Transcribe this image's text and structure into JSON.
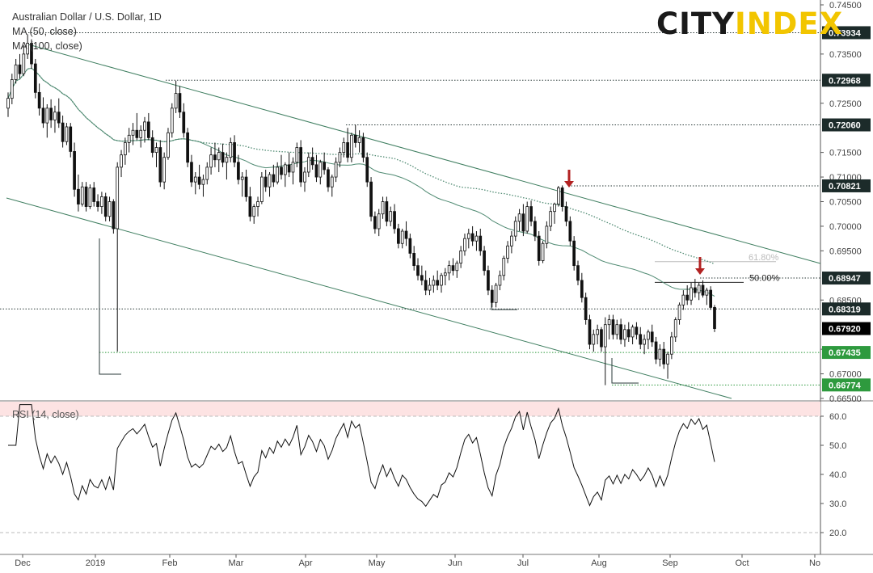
{
  "legend": {
    "title": "Australian Dollar / U.S. Dollar, 1D",
    "ma50": "MA (50, close)",
    "ma100": "MA (100, close)"
  },
  "logo": {
    "part1": "CITY",
    "part2": "INDEX"
  },
  "rsi_label": "RSI (14, close)",
  "colors": {
    "candle": "#111111",
    "ma_solid": "#4f8a72",
    "ma_dotted": "#4f8a72",
    "channel": "#3f7e60",
    "arrow": "#b22222",
    "label_dark": "#1c2b2a",
    "label_green": "#2e9a3e",
    "label_black": "#000000",
    "rsi_band": "#fde3e3"
  },
  "chart_data": [
    {
      "type": "candlestick",
      "title": "Australian Dollar / U.S. Dollar, 1D",
      "ylim": [
        0.665,
        0.745
      ],
      "y_ticks": [
        "0.74500",
        "0.73500",
        "0.72500",
        "0.71500",
        "0.71000",
        "0.70500",
        "0.70000",
        "0.69500",
        "0.68500",
        "0.67500",
        "0.67000",
        "0.66500"
      ],
      "x_ticks": [
        "Dec",
        "2019",
        "Feb",
        "Mar",
        "Apr",
        "May",
        "Jun",
        "Jul",
        "Aug",
        "Sep",
        "Oct",
        "No"
      ],
      "price_levels": [
        {
          "value": 0.73934,
          "label": "0.73934",
          "style": "dark"
        },
        {
          "value": 0.72968,
          "label": "0.72968",
          "style": "dark"
        },
        {
          "value": 0.7206,
          "label": "0.72060",
          "style": "dark"
        },
        {
          "value": 0.70821,
          "label": "0.70821",
          "style": "dark"
        },
        {
          "value": 0.68947,
          "label": "0.68947",
          "style": "dark"
        },
        {
          "value": 0.68319,
          "label": "0.68319",
          "style": "dark"
        },
        {
          "value": 0.6792,
          "label": "0.67920",
          "style": "black"
        },
        {
          "value": 0.67435,
          "label": "0.67435",
          "style": "green"
        },
        {
          "value": 0.66774,
          "label": "0.66774",
          "style": "green"
        }
      ],
      "fib_levels": [
        {
          "label": "61.80%",
          "value": 0.6928
        },
        {
          "label": "50.00%",
          "value": 0.6886
        }
      ],
      "ohlc": [
        [
          0.724,
          0.7272,
          0.7222,
          0.726
        ],
        [
          0.726,
          0.731,
          0.7248,
          0.7298
        ],
        [
          0.7298,
          0.734,
          0.729,
          0.7328
        ],
        [
          0.7328,
          0.735,
          0.73,
          0.731
        ],
        [
          0.731,
          0.7368,
          0.7305,
          0.735
        ],
        [
          0.735,
          0.739,
          0.734,
          0.7372
        ],
        [
          0.7372,
          0.738,
          0.732,
          0.733
        ],
        [
          0.733,
          0.734,
          0.726,
          0.7272
        ],
        [
          0.7272,
          0.729,
          0.7225,
          0.724
        ],
        [
          0.724,
          0.7262,
          0.72,
          0.721
        ],
        [
          0.721,
          0.7248,
          0.718,
          0.724
        ],
        [
          0.724,
          0.7258,
          0.72,
          0.7216
        ],
        [
          0.7216,
          0.7245,
          0.719,
          0.7232
        ],
        [
          0.7232,
          0.726,
          0.72,
          0.721
        ],
        [
          0.721,
          0.7225,
          0.716,
          0.7172
        ],
        [
          0.7172,
          0.721,
          0.7165,
          0.7202
        ],
        [
          0.7202,
          0.721,
          0.714,
          0.7152
        ],
        [
          0.7152,
          0.717,
          0.706,
          0.7075
        ],
        [
          0.7075,
          0.7105,
          0.703,
          0.7045
        ],
        [
          0.7045,
          0.709,
          0.704,
          0.708
        ],
        [
          0.708,
          0.709,
          0.703,
          0.704
        ],
        [
          0.704,
          0.7085,
          0.7035,
          0.7078
        ],
        [
          0.7078,
          0.709,
          0.704,
          0.705
        ],
        [
          0.705,
          0.7065,
          0.703,
          0.704
        ],
        [
          0.704,
          0.707,
          0.7025,
          0.706
        ],
        [
          0.706,
          0.7068,
          0.701,
          0.702
        ],
        [
          0.702,
          0.706,
          0.701,
          0.705
        ],
        [
          0.705,
          0.7055,
          0.6985,
          0.6995
        ],
        [
          0.6995,
          0.713,
          0.6745,
          0.712
        ],
        [
          0.712,
          0.7155,
          0.71,
          0.7145
        ],
        [
          0.7145,
          0.718,
          0.7125,
          0.717
        ],
        [
          0.717,
          0.72,
          0.715,
          0.7185
        ],
        [
          0.7185,
          0.721,
          0.7165,
          0.7195
        ],
        [
          0.7195,
          0.723,
          0.7175,
          0.718
        ],
        [
          0.718,
          0.7205,
          0.716,
          0.7195
        ],
        [
          0.7195,
          0.7222,
          0.717,
          0.7212
        ],
        [
          0.7212,
          0.723,
          0.7175,
          0.718
        ],
        [
          0.718,
          0.7195,
          0.714,
          0.715
        ],
        [
          0.715,
          0.717,
          0.712,
          0.716
        ],
        [
          0.716,
          0.7175,
          0.708,
          0.709
        ],
        [
          0.709,
          0.715,
          0.7075,
          0.714
        ],
        [
          0.714,
          0.72,
          0.7135,
          0.719
        ],
        [
          0.719,
          0.725,
          0.718,
          0.724
        ],
        [
          0.724,
          0.7296,
          0.723,
          0.727
        ],
        [
          0.727,
          0.7285,
          0.722,
          0.7232
        ],
        [
          0.7232,
          0.725,
          0.718,
          0.719
        ],
        [
          0.719,
          0.72,
          0.712,
          0.713
        ],
        [
          0.713,
          0.7145,
          0.708,
          0.709
        ],
        [
          0.709,
          0.711,
          0.7065,
          0.71
        ],
        [
          0.71,
          0.7125,
          0.7075,
          0.7085
        ],
        [
          0.7085,
          0.7105,
          0.706,
          0.7095
        ],
        [
          0.7095,
          0.713,
          0.7085,
          0.712
        ],
        [
          0.712,
          0.716,
          0.7105,
          0.7145
        ],
        [
          0.7145,
          0.717,
          0.712,
          0.7135
        ],
        [
          0.7135,
          0.716,
          0.711,
          0.715
        ],
        [
          0.715,
          0.7168,
          0.712,
          0.713
        ],
        [
          0.713,
          0.715,
          0.7095,
          0.714
        ],
        [
          0.714,
          0.718,
          0.713,
          0.717
        ],
        [
          0.717,
          0.7185,
          0.712,
          0.713
        ],
        [
          0.713,
          0.7145,
          0.7085,
          0.7095
        ],
        [
          0.7095,
          0.711,
          0.706,
          0.71
        ],
        [
          0.71,
          0.7115,
          0.705,
          0.706
        ],
        [
          0.706,
          0.708,
          0.701,
          0.702
        ],
        [
          0.702,
          0.7045,
          0.7005,
          0.704
        ],
        [
          0.704,
          0.706,
          0.702,
          0.705
        ],
        [
          0.705,
          0.711,
          0.7045,
          0.71
        ],
        [
          0.71,
          0.7115,
          0.707,
          0.708
        ],
        [
          0.708,
          0.711,
          0.706,
          0.7105
        ],
        [
          0.7105,
          0.7125,
          0.708,
          0.709
        ],
        [
          0.709,
          0.713,
          0.7085,
          0.712
        ],
        [
          0.712,
          0.7145,
          0.7095,
          0.7105
        ],
        [
          0.7105,
          0.713,
          0.708,
          0.7125
        ],
        [
          0.7125,
          0.715,
          0.71,
          0.711
        ],
        [
          0.711,
          0.714,
          0.7085,
          0.713
        ],
        [
          0.713,
          0.717,
          0.712,
          0.716
        ],
        [
          0.716,
          0.7175,
          0.708,
          0.709
        ],
        [
          0.709,
          0.712,
          0.707,
          0.711
        ],
        [
          0.711,
          0.715,
          0.71,
          0.714
        ],
        [
          0.714,
          0.716,
          0.7115,
          0.7125
        ],
        [
          0.7125,
          0.7145,
          0.709,
          0.71
        ],
        [
          0.71,
          0.7135,
          0.7085,
          0.713
        ],
        [
          0.713,
          0.715,
          0.7105,
          0.7115
        ],
        [
          0.7115,
          0.712,
          0.707,
          0.708
        ],
        [
          0.708,
          0.7105,
          0.706,
          0.71
        ],
        [
          0.71,
          0.714,
          0.709,
          0.713
        ],
        [
          0.713,
          0.716,
          0.712,
          0.715
        ],
        [
          0.715,
          0.718,
          0.714,
          0.717
        ],
        [
          0.717,
          0.72,
          0.713,
          0.714
        ],
        [
          0.714,
          0.719,
          0.713,
          0.7185
        ],
        [
          0.7185,
          0.7206,
          0.716,
          0.717
        ],
        [
          0.717,
          0.7195,
          0.715,
          0.718
        ],
        [
          0.718,
          0.719,
          0.713,
          0.714
        ],
        [
          0.714,
          0.715,
          0.708,
          0.709
        ],
        [
          0.709,
          0.71,
          0.701,
          0.702
        ],
        [
          0.702,
          0.703,
          0.6985,
          0.6995
        ],
        [
          0.6995,
          0.7035,
          0.698,
          0.7025
        ],
        [
          0.7025,
          0.706,
          0.7015,
          0.705
        ],
        [
          0.705,
          0.706,
          0.7,
          0.701
        ],
        [
          0.701,
          0.704,
          0.7,
          0.703
        ],
        [
          0.703,
          0.7045,
          0.6985,
          0.6995
        ],
        [
          0.6995,
          0.7005,
          0.6955,
          0.6965
        ],
        [
          0.6965,
          0.6995,
          0.6955,
          0.699
        ],
        [
          0.699,
          0.701,
          0.696,
          0.6975
        ],
        [
          0.6975,
          0.6985,
          0.6935,
          0.6945
        ],
        [
          0.6945,
          0.696,
          0.691,
          0.692
        ],
        [
          0.692,
          0.6935,
          0.689,
          0.69
        ],
        [
          0.69,
          0.692,
          0.688,
          0.689
        ],
        [
          0.689,
          0.691,
          0.686,
          0.687
        ],
        [
          0.687,
          0.6895,
          0.686,
          0.688
        ],
        [
          0.688,
          0.69,
          0.6865,
          0.689
        ],
        [
          0.689,
          0.691,
          0.687,
          0.688
        ],
        [
          0.688,
          0.6905,
          0.6865,
          0.69
        ],
        [
          0.69,
          0.6915,
          0.688,
          0.6905
        ],
        [
          0.6905,
          0.693,
          0.689,
          0.692
        ],
        [
          0.692,
          0.6935,
          0.69,
          0.691
        ],
        [
          0.691,
          0.693,
          0.6895,
          0.6925
        ],
        [
          0.6925,
          0.696,
          0.6915,
          0.695
        ],
        [
          0.695,
          0.6985,
          0.694,
          0.6975
        ],
        [
          0.6975,
          0.6995,
          0.6955,
          0.6985
        ],
        [
          0.6985,
          0.7,
          0.696,
          0.697
        ],
        [
          0.697,
          0.699,
          0.695,
          0.698
        ],
        [
          0.698,
          0.6995,
          0.694,
          0.695
        ],
        [
          0.695,
          0.696,
          0.69,
          0.691
        ],
        [
          0.691,
          0.692,
          0.686,
          0.687
        ],
        [
          0.687,
          0.688,
          0.6835,
          0.6845
        ],
        [
          0.6845,
          0.6885,
          0.6835,
          0.688
        ],
        [
          0.688,
          0.691,
          0.687,
          0.69
        ],
        [
          0.69,
          0.694,
          0.689,
          0.6935
        ],
        [
          0.6935,
          0.697,
          0.6925,
          0.696
        ],
        [
          0.696,
          0.699,
          0.6945,
          0.698
        ],
        [
          0.698,
          0.702,
          0.697,
          0.701
        ],
        [
          0.701,
          0.7035,
          0.699,
          0.7025
        ],
        [
          0.7025,
          0.7045,
          0.698,
          0.699
        ],
        [
          0.699,
          0.705,
          0.6985,
          0.704
        ],
        [
          0.704,
          0.7052,
          0.7,
          0.701
        ],
        [
          0.701,
          0.702,
          0.697,
          0.698
        ],
        [
          0.698,
          0.699,
          0.692,
          0.693
        ],
        [
          0.693,
          0.697,
          0.6925,
          0.6965
        ],
        [
          0.6965,
          0.701,
          0.6955,
          0.7
        ],
        [
          0.7,
          0.704,
          0.699,
          0.703
        ],
        [
          0.703,
          0.7048,
          0.7005,
          0.7045
        ],
        [
          0.7045,
          0.7082,
          0.704,
          0.7078
        ],
        [
          0.7078,
          0.7083,
          0.703,
          0.704
        ],
        [
          0.704,
          0.705,
          0.7,
          0.701
        ],
        [
          0.701,
          0.702,
          0.696,
          0.697
        ],
        [
          0.697,
          0.698,
          0.691,
          0.692
        ],
        [
          0.692,
          0.693,
          0.688,
          0.689
        ],
        [
          0.689,
          0.6905,
          0.6845,
          0.6855
        ],
        [
          0.6855,
          0.6865,
          0.68,
          0.681
        ],
        [
          0.681,
          0.682,
          0.675,
          0.676
        ],
        [
          0.676,
          0.679,
          0.6745,
          0.678
        ],
        [
          0.678,
          0.68,
          0.676,
          0.679
        ],
        [
          0.679,
          0.6795,
          0.6745,
          0.6755
        ],
        [
          0.6755,
          0.6815,
          0.6677,
          0.68
        ],
        [
          0.68,
          0.682,
          0.677,
          0.681
        ],
        [
          0.681,
          0.682,
          0.677,
          0.678
        ],
        [
          0.678,
          0.681,
          0.677,
          0.68
        ],
        [
          0.68,
          0.6812,
          0.676,
          0.677
        ],
        [
          0.677,
          0.68,
          0.6755,
          0.679
        ],
        [
          0.679,
          0.6805,
          0.6765,
          0.6775
        ],
        [
          0.6775,
          0.68,
          0.676,
          0.6795
        ],
        [
          0.6795,
          0.6805,
          0.677,
          0.678
        ],
        [
          0.678,
          0.6795,
          0.675,
          0.676
        ],
        [
          0.676,
          0.678,
          0.674,
          0.677
        ],
        [
          0.677,
          0.679,
          0.675,
          0.6785
        ],
        [
          0.6785,
          0.68,
          0.6755,
          0.6765
        ],
        [
          0.6765,
          0.6775,
          0.672,
          0.673
        ],
        [
          0.673,
          0.676,
          0.6715,
          0.675
        ],
        [
          0.675,
          0.6765,
          0.671,
          0.672
        ],
        [
          0.672,
          0.6745,
          0.669,
          0.674
        ],
        [
          0.674,
          0.6785,
          0.673,
          0.6775
        ],
        [
          0.6775,
          0.6815,
          0.6765,
          0.681
        ],
        [
          0.681,
          0.6845,
          0.68,
          0.684
        ],
        [
          0.684,
          0.687,
          0.683,
          0.686
        ],
        [
          0.686,
          0.688,
          0.684,
          0.685
        ],
        [
          0.685,
          0.6885,
          0.684,
          0.6875
        ],
        [
          0.6875,
          0.6893,
          0.6855,
          0.6865
        ],
        [
          0.6865,
          0.6885,
          0.685,
          0.688
        ],
        [
          0.688,
          0.689,
          0.6855,
          0.686
        ],
        [
          0.686,
          0.6875,
          0.684,
          0.687
        ],
        [
          0.687,
          0.6878,
          0.683,
          0.6835
        ],
        [
          0.6835,
          0.684,
          0.6785,
          0.6792
        ]
      ],
      "annotations": [
        "Red arrow at July high near 0.70821",
        "Red arrow at September high near 0.68947"
      ]
    },
    {
      "type": "line",
      "title": "RSI (14, close)",
      "ylim": [
        15,
        65
      ],
      "y_ticks": [
        "60.0",
        "50.0",
        "40.0",
        "30.0",
        "20.0"
      ],
      "overbought": 60,
      "oversold": 20
    }
  ]
}
